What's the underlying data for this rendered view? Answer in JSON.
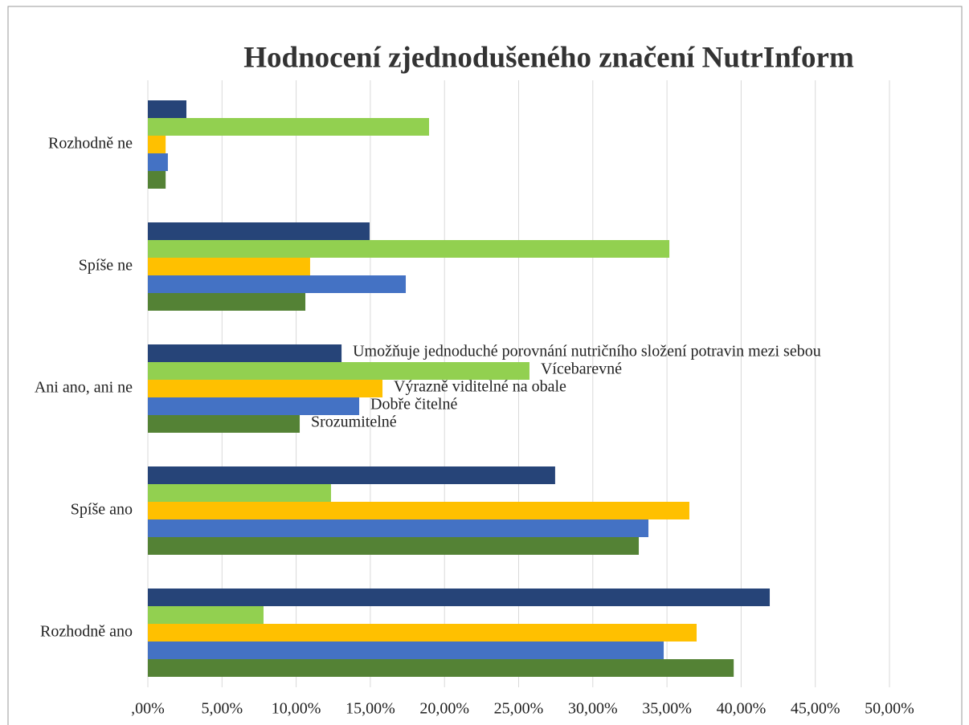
{
  "chart_data": {
    "type": "hbar",
    "title": "Hodnocení zjednodušeného značení NutrInform",
    "categories": [
      "Rozhodně ne",
      "Spíše ne",
      "Ani ano, ani ne",
      "Spíše ano",
      "Rozhodně ano"
    ],
    "series": [
      {
        "name": "Umožňuje jednoduché porovnání nutričního složení potravin mezi sebou",
        "color": "#264478",
        "values": [
          2.6,
          14.95,
          13.06,
          27.46,
          41.93
        ]
      },
      {
        "name": "Vícebarevné",
        "color": "#92d050",
        "values": [
          18.96,
          35.16,
          25.73,
          12.35,
          7.8
        ]
      },
      {
        "name": "Výrazně viditelné na obale",
        "color": "#ffc000",
        "values": [
          1.2,
          10.94,
          15.82,
          36.51,
          37.0
        ]
      },
      {
        "name": "Dobře čitelné",
        "color": "#4472c4",
        "values": [
          1.35,
          17.39,
          14.25,
          33.75,
          34.78
        ]
      },
      {
        "name": "Srozumitelné",
        "color": "#548235",
        "values": [
          1.2,
          10.62,
          10.24,
          33.1,
          39.5
        ]
      }
    ],
    "xlim": [
      0,
      50
    ],
    "xticks": [
      {
        "value": 0,
        "label": ",00%"
      },
      {
        "value": 5,
        "label": "5,00%"
      },
      {
        "value": 10,
        "label": "10,00%"
      },
      {
        "value": 15,
        "label": "15,00%"
      },
      {
        "value": 20,
        "label": "20,00%"
      },
      {
        "value": 25,
        "label": "25,00%"
      },
      {
        "value": 30,
        "label": "30,00%"
      },
      {
        "value": 35,
        "label": "35,00%"
      },
      {
        "value": 40,
        "label": "40,00%"
      },
      {
        "value": 45,
        "label": "45,00%"
      },
      {
        "value": 50,
        "label": "50,00%"
      }
    ],
    "grid": true
  }
}
